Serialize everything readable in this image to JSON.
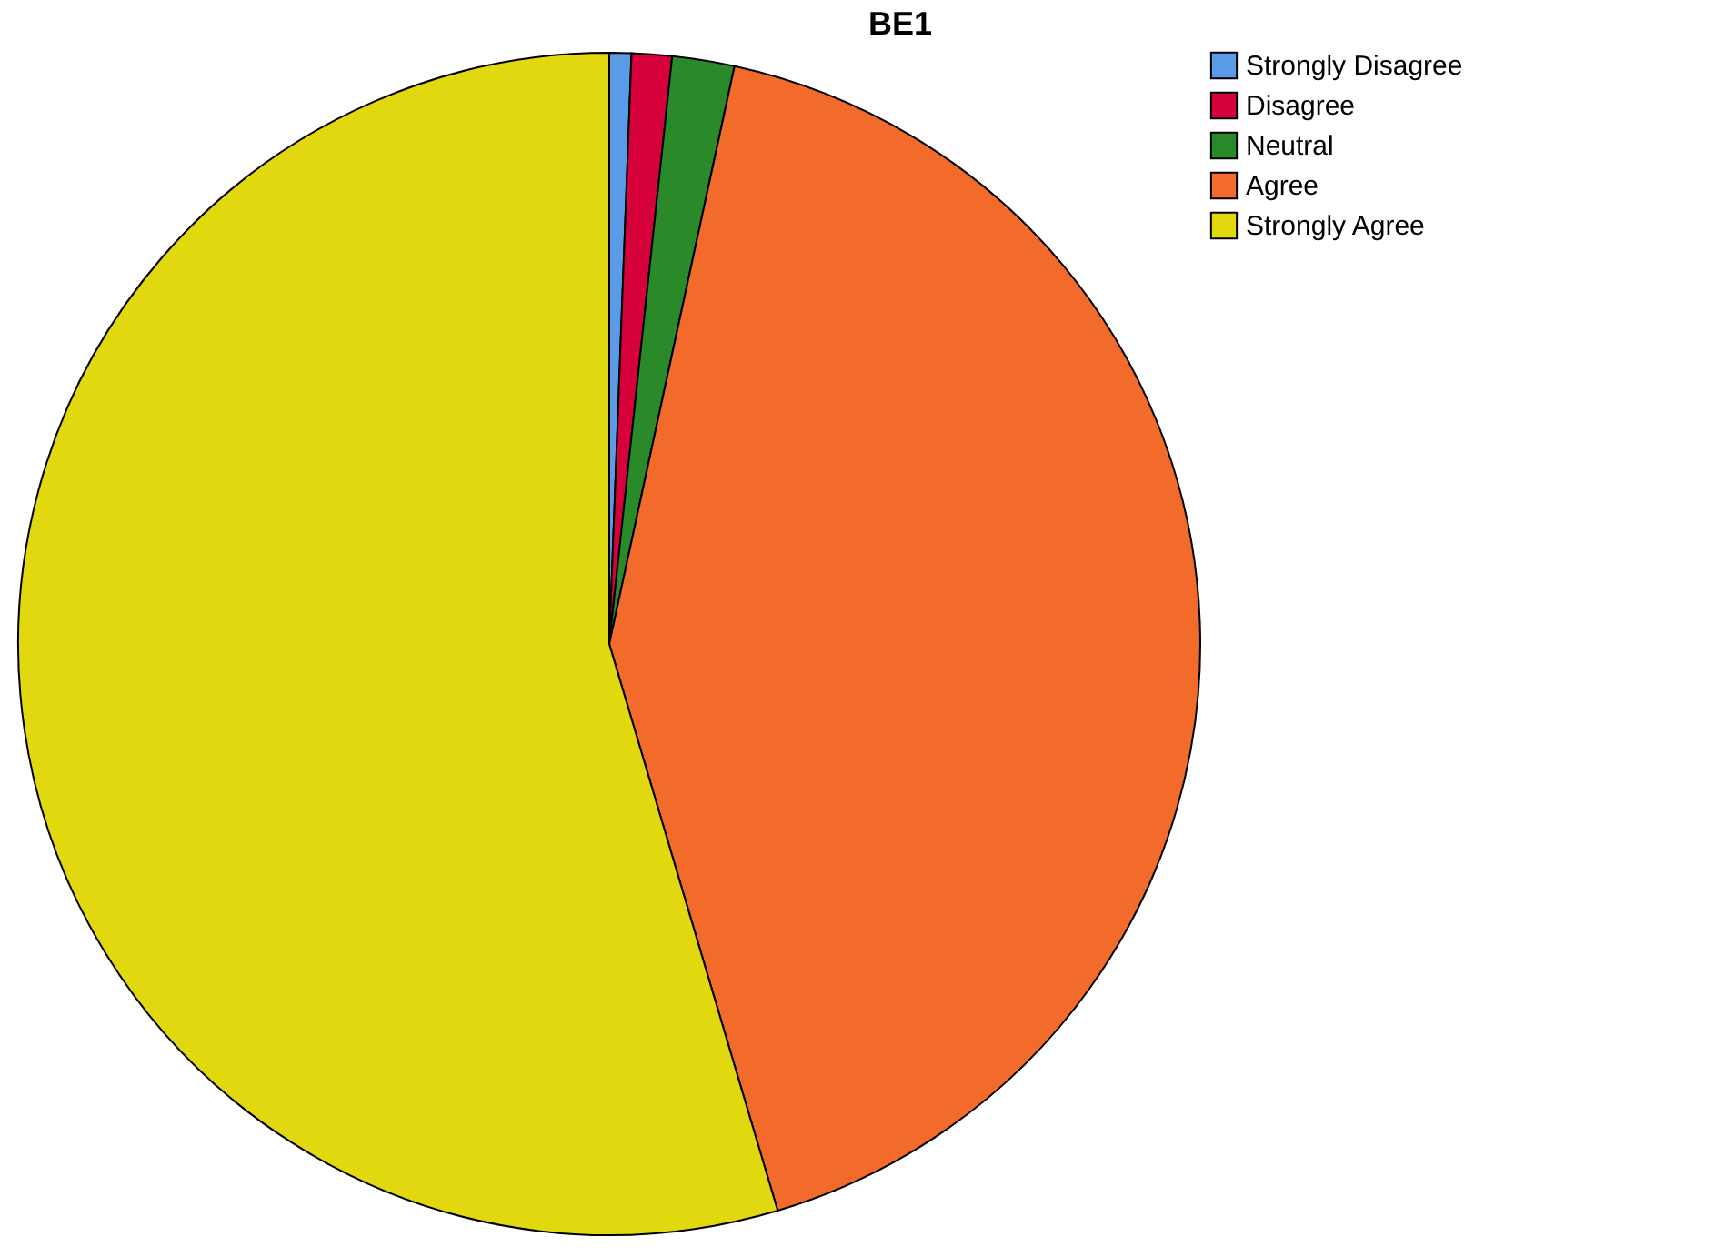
{
  "chart_data": {
    "type": "pie",
    "title": "BE1",
    "categories": [
      "Strongly Disagree",
      "Disagree",
      "Neutral",
      "Agree",
      "Strongly Agree"
    ],
    "values": [
      0.6,
      1.1,
      1.7,
      42.0,
      54.6
    ],
    "colors": [
      "#5b9be6",
      "#d6003a",
      "#2a8a2a",
      "#f26b2b",
      "#e2d810"
    ],
    "legend": "top right"
  }
}
